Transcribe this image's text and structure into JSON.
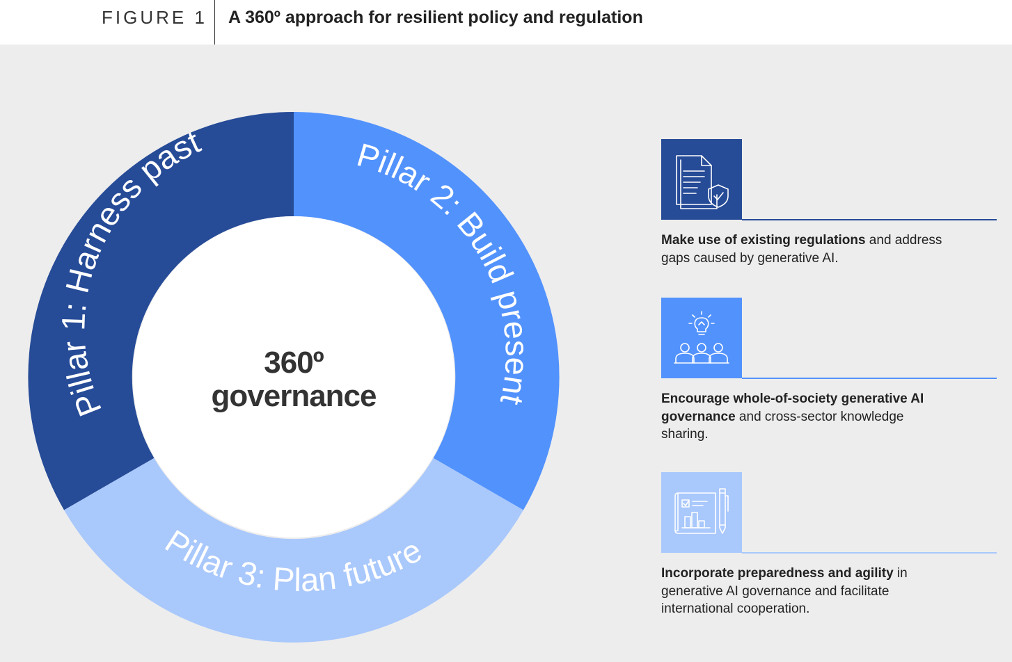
{
  "header": {
    "figure_label": "FIGURE 1",
    "title": "A 360º approach for resilient policy and regulation"
  },
  "diagram": {
    "center": {
      "line1": "360º",
      "line2": "governance"
    },
    "pillars": [
      {
        "label": "Pillar 1: Harness past",
        "color": "#264b97"
      },
      {
        "label": "Pillar 2: Build present",
        "color": "#5292fd"
      },
      {
        "label": "Pillar 3: Plan future",
        "color": "#a9c8fc"
      }
    ]
  },
  "items": [
    {
      "icon": "document-shield-icon",
      "color": "#264b97",
      "bold": "Make use of existing regulations",
      "rest": " and address gaps caused by generative AI."
    },
    {
      "icon": "people-lightbulb-icon",
      "color": "#5292fd",
      "bold": "Encourage whole-of-society generative AI governance",
      "rest": " and cross-sector knowledge sharing."
    },
    {
      "icon": "blueprint-plan-icon",
      "color": "#a9c8fc",
      "bold": "Incorporate preparedness and agility",
      "rest": " in generative AI governance and facilitate international cooperation."
    }
  ]
}
